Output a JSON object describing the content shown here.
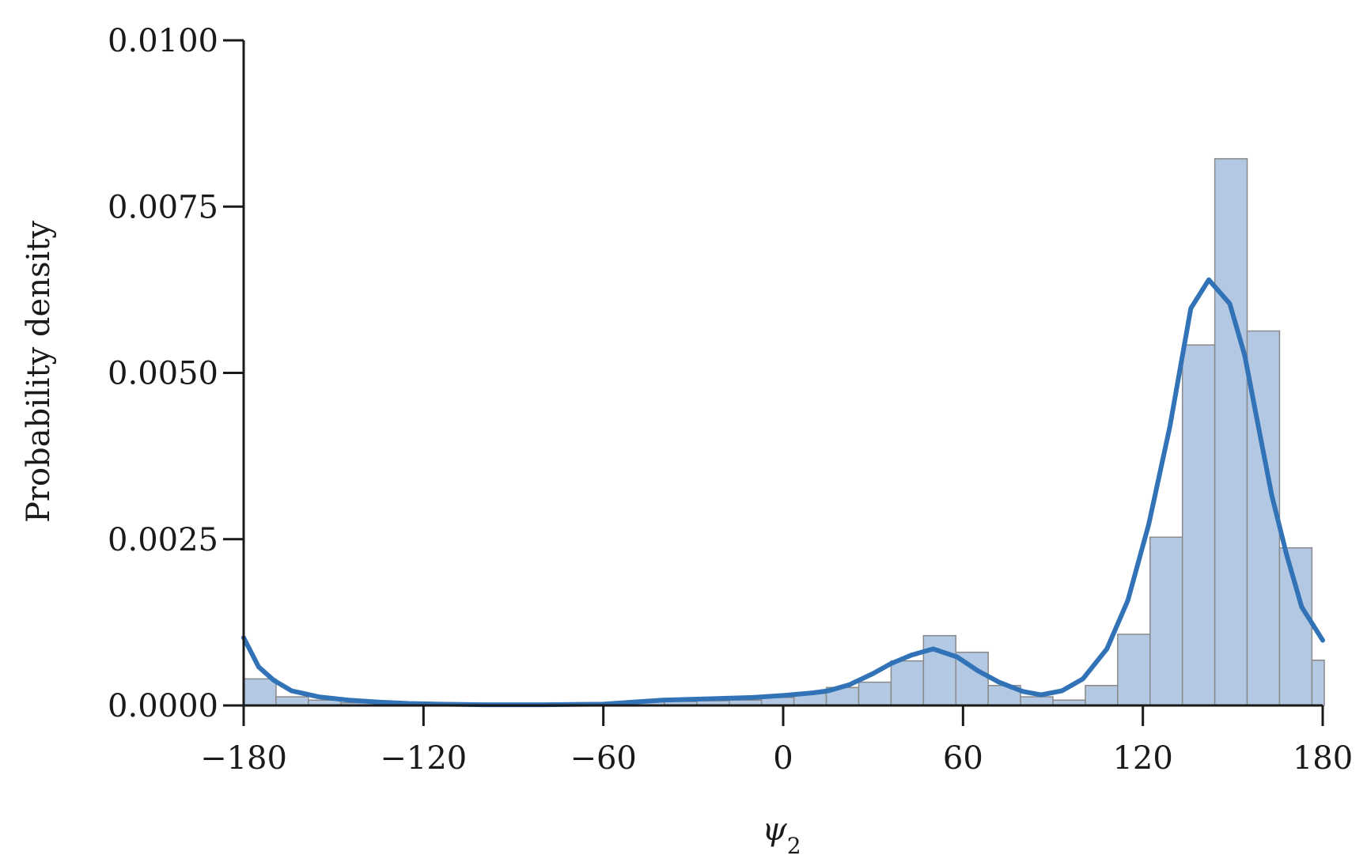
{
  "chart_data": {
    "type": "bar",
    "xlabel_base": "ψ",
    "xlabel_sub": "2",
    "ylabel": "Probability density",
    "xlim": [
      -180,
      180
    ],
    "ylim": [
      0,
      0.01
    ],
    "xticks": [
      -180,
      -120,
      -60,
      0,
      60,
      120,
      180
    ],
    "xtick_labels": [
      "−180",
      "−120",
      "−60",
      "0",
      "60",
      "120",
      "180"
    ],
    "yticks": [
      0,
      0.0025,
      0.005,
      0.0075,
      0.01
    ],
    "ytick_labels": [
      "0.0000",
      "0.0025",
      "0.0050",
      "0.0075",
      "0.0100"
    ],
    "grid": false,
    "colors": {
      "histogram_fill": "#b3c8e3",
      "histogram_edge": "#8a8a8a",
      "kde_line": "#3273b8",
      "axis": "#1a1a1a"
    },
    "histogram": {
      "bin_width": 10.8,
      "bin_edges": [
        -180,
        -169.2,
        -158.4,
        -147.6,
        -136.8,
        -126,
        -115.2,
        -104.4,
        -93.6,
        -82.8,
        -72,
        -61.2,
        -50.4,
        -39.6,
        -28.8,
        -18,
        -7.2,
        3.6,
        14.4,
        25.2,
        36,
        46.8,
        57.6,
        68.4,
        79.2,
        90,
        100.8,
        111.6,
        122.4,
        133.2,
        144,
        154.8,
        165.6,
        176.4,
        187.2
      ],
      "values": [
        0.0004,
        0.00013,
        8e-05,
        4e-05,
        2e-05,
        1e-05,
        1e-05,
        1e-05,
        1e-05,
        1e-05,
        2e-05,
        3e-05,
        5e-05,
        6e-05,
        7e-05,
        8e-05,
        0.00012,
        0.00018,
        0.00027,
        0.00035,
        0.00067,
        0.00105,
        0.0008,
        0.0003,
        0.00013,
        8e-05,
        0.0003,
        0.00107,
        0.00253,
        0.00542,
        0.00822,
        0.00563,
        0.00237,
        0.00068
      ]
    },
    "kde": {
      "x": [
        -180,
        -175,
        -170,
        -164,
        -155,
        -145,
        -135,
        -125,
        -115,
        -100,
        -80,
        -60,
        -50,
        -40,
        -25,
        -10,
        0,
        10,
        15,
        22,
        30,
        36,
        43,
        50,
        58,
        65,
        72,
        80,
        86,
        93,
        100,
        108,
        115,
        122,
        129,
        136,
        142,
        149,
        154,
        158,
        163,
        168,
        173,
        180
      ],
      "y": [
        0.00102,
        0.00058,
        0.00038,
        0.00022,
        0.00013,
        8e-05,
        5e-05,
        3e-05,
        2e-05,
        1e-05,
        1e-05,
        2e-05,
        5e-05,
        8e-05,
        0.0001,
        0.00012,
        0.00015,
        0.00019,
        0.00022,
        0.00031,
        0.00048,
        0.00063,
        0.00076,
        0.00085,
        0.00073,
        0.00052,
        0.00035,
        0.00021,
        0.00016,
        0.00022,
        0.0004,
        0.00085,
        0.00158,
        0.00273,
        0.00419,
        0.00597,
        0.0064,
        0.00604,
        0.00526,
        0.00432,
        0.00316,
        0.00226,
        0.00148,
        0.00098
      ]
    }
  }
}
